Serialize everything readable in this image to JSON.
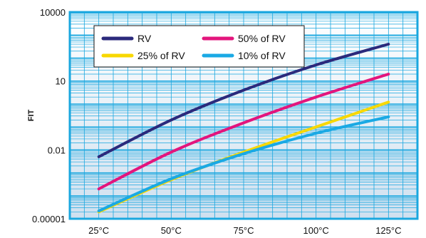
{
  "chart_data": {
    "type": "line",
    "xlabel": "",
    "ylabel": "FIT",
    "y_scale": "log",
    "ylim": [
      1e-05,
      10000
    ],
    "y_ticks": [
      "10000",
      "10",
      "0.01",
      "0.00001"
    ],
    "x_ticks": [
      "25°C",
      "50°C",
      "75°C",
      "100°C",
      "125°C"
    ],
    "xlim": [
      15,
      135
    ],
    "grid": true,
    "legend_position": "top-left",
    "series": [
      {
        "name": "RV",
        "color": "#2b2a7c",
        "x": [
          25,
          50,
          75,
          100,
          125
        ],
        "y": [
          0.005,
          0.2,
          4,
          50,
          400
        ]
      },
      {
        "name": "50% of RV",
        "color": "#e3157d",
        "x": [
          25,
          50,
          75,
          100,
          125
        ],
        "y": [
          0.0002,
          0.008,
          0.15,
          2,
          20
        ]
      },
      {
        "name": "25% of RV",
        "color": "#f8d800",
        "x": [
          25,
          50,
          75,
          100,
          125
        ],
        "y": [
          2e-05,
          0.0005,
          0.008,
          0.1,
          1.2
        ]
      },
      {
        "name": "10% of RV",
        "color": "#1aa9e4",
        "x": [
          25,
          50,
          75,
          100,
          125
        ],
        "y": [
          2.2e-05,
          0.00055,
          0.0068,
          0.0528,
          0.275
        ]
      }
    ]
  },
  "colors": {
    "frame": "#1aa7df",
    "grid": "#1aa7df",
    "bg_top": "#ffffff",
    "bg_bottom": "#cfe0ef"
  }
}
